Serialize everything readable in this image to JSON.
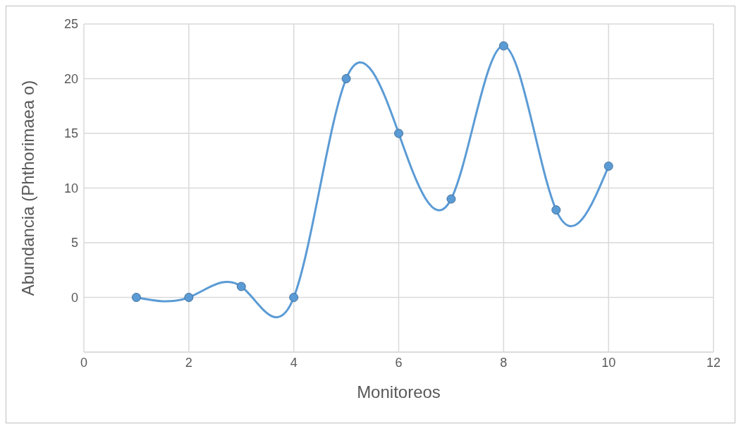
{
  "chart_data": {
    "type": "line",
    "xlabel": "Monitoreos",
    "ylabel": "Abundancia (Phthorimaea o)",
    "x": [
      1,
      2,
      3,
      4,
      5,
      6,
      7,
      8,
      9,
      10
    ],
    "series": [
      {
        "color": "#5b9bd5",
        "values": [
          0,
          0,
          1,
          0,
          20,
          15,
          9,
          23,
          8,
          12
        ]
      }
    ],
    "xlim": [
      0,
      12
    ],
    "xticks": [
      0,
      2,
      4,
      6,
      8,
      10,
      12
    ],
    "ylim": [
      -5,
      25
    ],
    "yticks": [
      {
        "value": -5,
        "label": null
      },
      0,
      5,
      10,
      15,
      20,
      25
    ],
    "grid": true,
    "marker": "circle",
    "line_style": "solid"
  }
}
